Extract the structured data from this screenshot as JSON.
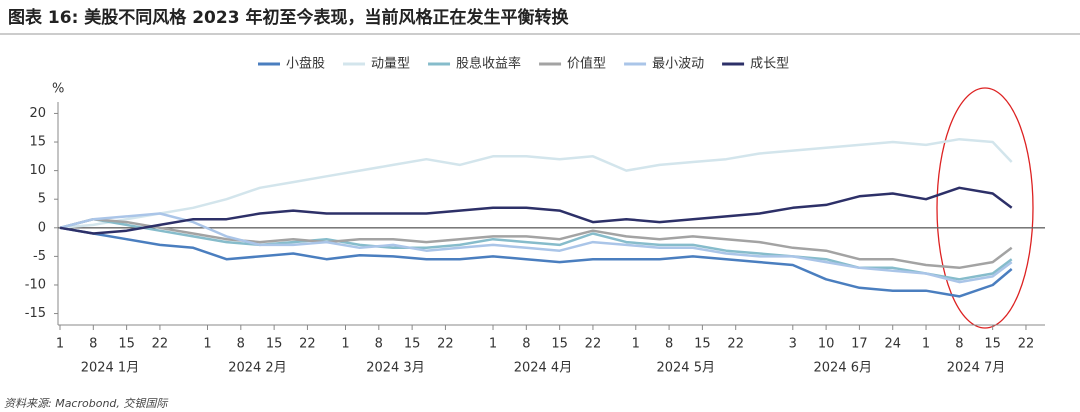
{
  "chart_data": {
    "type": "line",
    "title": "图表 16: 美股不同风格 2023 年初至今表现，当前风格正在发生平衡转换",
    "source": "资料来源: Macrobond, 交银国际",
    "y_unit": "%",
    "x": [
      "2024-01-01",
      "2024-01-08",
      "2024-01-15",
      "2024-01-22",
      "2024-01-29",
      "2024-02-05",
      "2024-02-12",
      "2024-02-19",
      "2024-02-26",
      "2024-03-04",
      "2024-03-11",
      "2024-03-18",
      "2024-03-25",
      "2024-04-01",
      "2024-04-08",
      "2024-04-15",
      "2024-04-22",
      "2024-04-29",
      "2024-05-06",
      "2024-05-13",
      "2024-05-20",
      "2024-05-27",
      "2024-06-03",
      "2024-06-10",
      "2024-06-17",
      "2024-06-24",
      "2024-07-01",
      "2024-07-08",
      "2024-07-15",
      "2024-07-19"
    ],
    "series": [
      {
        "name": "小盘股",
        "color": "#4a7ebf",
        "values": [
          0,
          -1,
          -2,
          -3,
          -3.5,
          -5.5,
          -5,
          -4.5,
          -5.5,
          -4.8,
          -5,
          -5.5,
          -5.5,
          -5,
          -5.5,
          -6,
          -5.5,
          -5.5,
          -5.5,
          -5,
          -5.5,
          -6,
          -6.5,
          -9,
          -10.5,
          -11,
          -11,
          -12,
          -10,
          -7.2
        ]
      },
      {
        "name": "动量型",
        "color": "#d3e5ec",
        "values": [
          0,
          0.5,
          1.5,
          2.5,
          3.5,
          5,
          7,
          8,
          9,
          10,
          11,
          12,
          11,
          12.5,
          12.5,
          12,
          12.5,
          10,
          11,
          11.5,
          12,
          13,
          13.5,
          14,
          14.5,
          15,
          14.5,
          15.5,
          15,
          11.5
        ]
      },
      {
        "name": "股息收益率",
        "color": "#86bccb",
        "values": [
          0,
          1.5,
          0.5,
          -0.5,
          -1.5,
          -2.5,
          -3,
          -2.5,
          -2,
          -3,
          -3.5,
          -3.5,
          -3,
          -2,
          -2.5,
          -3,
          -1,
          -2.5,
          -3,
          -3,
          -4,
          -4.5,
          -5,
          -5.5,
          -7,
          -7,
          -8,
          -9,
          -8,
          -5.5
        ]
      },
      {
        "name": "价值型",
        "color": "#a3a3a3",
        "values": [
          0,
          1.5,
          1,
          0,
          -1,
          -2,
          -2.5,
          -2,
          -2.5,
          -2,
          -2,
          -2.5,
          -2,
          -1.5,
          -1.5,
          -2,
          -0.5,
          -1.5,
          -2,
          -1.5,
          -2,
          -2.5,
          -3.5,
          -4,
          -5.5,
          -5.5,
          -6.5,
          -7,
          -6,
          -3.5
        ]
      },
      {
        "name": "最小波动",
        "color": "#aac5e8",
        "values": [
          0,
          1.5,
          2,
          2.5,
          1,
          -1.5,
          -3,
          -3,
          -2.5,
          -3.5,
          -3,
          -4,
          -3.5,
          -3,
          -3.5,
          -4,
          -2.5,
          -3,
          -3.5,
          -3.5,
          -4.5,
          -5,
          -5,
          -6,
          -7,
          -7.5,
          -8,
          -9.5,
          -8.5,
          -6
        ]
      },
      {
        "name": "成长型",
        "color": "#2d3068",
        "values": [
          0,
          -1,
          -0.5,
          0.5,
          1.5,
          1.5,
          2.5,
          3,
          2.5,
          2.5,
          2.5,
          2.5,
          3,
          3.5,
          3.5,
          3,
          1,
          1.5,
          1,
          1.5,
          2,
          2.5,
          3.5,
          4,
          5.5,
          6,
          5,
          7,
          6,
          3.5
        ]
      }
    ],
    "xlim": [
      "2024-01-01",
      "2024-07-26"
    ],
    "xticks": [
      {
        "value": "2024-01-01",
        "label": "1"
      },
      {
        "value": "2024-01-08",
        "label": "8"
      },
      {
        "value": "2024-01-15",
        "label": "15"
      },
      {
        "value": "2024-01-22",
        "label": "22"
      },
      {
        "value": "2024-02-01",
        "label": "1"
      },
      {
        "value": "2024-02-08",
        "label": "8"
      },
      {
        "value": "2024-02-15",
        "label": "15"
      },
      {
        "value": "2024-02-22",
        "label": "22"
      },
      {
        "value": "2024-03-01",
        "label": "1"
      },
      {
        "value": "2024-03-08",
        "label": "8"
      },
      {
        "value": "2024-03-15",
        "label": "15"
      },
      {
        "value": "2024-03-22",
        "label": "22"
      },
      {
        "value": "2024-04-01",
        "label": "1"
      },
      {
        "value": "2024-04-08",
        "label": "8"
      },
      {
        "value": "2024-04-15",
        "label": "15"
      },
      {
        "value": "2024-04-22",
        "label": "22"
      },
      {
        "value": "2024-05-01",
        "label": "1"
      },
      {
        "value": "2024-05-08",
        "label": "8"
      },
      {
        "value": "2024-05-15",
        "label": "15"
      },
      {
        "value": "2024-05-22",
        "label": "22"
      },
      {
        "value": "2024-06-03",
        "label": "3"
      },
      {
        "value": "2024-06-10",
        "label": "10"
      },
      {
        "value": "2024-06-17",
        "label": "17"
      },
      {
        "value": "2024-06-24",
        "label": "24"
      },
      {
        "value": "2024-07-01",
        "label": "1"
      },
      {
        "value": "2024-07-08",
        "label": "8"
      },
      {
        "value": "2024-07-15",
        "label": "15"
      },
      {
        "value": "2024-07-22",
        "label": "22"
      }
    ],
    "month_labels": [
      "2024 1月",
      "2024 2月",
      "2024 3月",
      "2024 4月",
      "2024 5月",
      "2024 6月",
      "2024 7月"
    ],
    "ylim": [
      -17,
      22
    ],
    "yticks": [
      -15,
      -10,
      -5,
      0,
      5,
      10,
      15,
      20
    ],
    "legend": "top"
  }
}
